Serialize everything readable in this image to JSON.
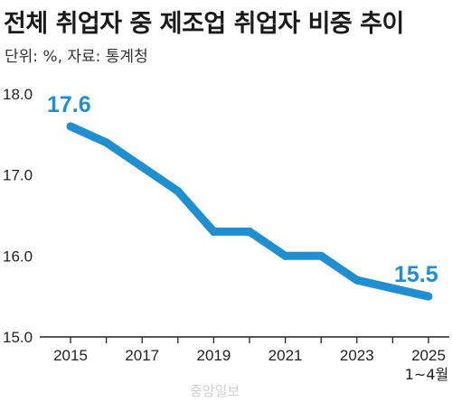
{
  "title": "전체 취업자 중 제조업 취업자 비중 추이",
  "subtitle": "단위: %, 자료: 통계청",
  "watermark": "중앙일보",
  "colors": {
    "line": "#1f8fd1",
    "axis": "#222222"
  },
  "chart_data": {
    "type": "line",
    "title": "전체 취업자 중 제조업 취업자 비중 추이",
    "units": "%",
    "source": "통계청",
    "x": [
      2015,
      2016,
      2017,
      2018,
      2019,
      2020,
      2021,
      2022,
      2023,
      2024,
      2025
    ],
    "x_tick_labels": [
      "2015",
      "2017",
      "2019",
      "2021",
      "2023",
      "2025"
    ],
    "x_tick_note": "1~4월",
    "series": [
      {
        "values": [
          17.6,
          17.4,
          17.1,
          16.8,
          16.3,
          16.3,
          16.0,
          16.0,
          15.7,
          15.6,
          15.5
        ]
      }
    ],
    "y_ticks": [
      "18.0",
      "17.0",
      "16.0",
      "15.0"
    ],
    "ylim": [
      15.0,
      18.0
    ],
    "data_labels": [
      {
        "x": 2015,
        "text": "17.6"
      },
      {
        "x": 2025,
        "text": "15.5"
      }
    ],
    "grid": false,
    "legend": "none"
  }
}
